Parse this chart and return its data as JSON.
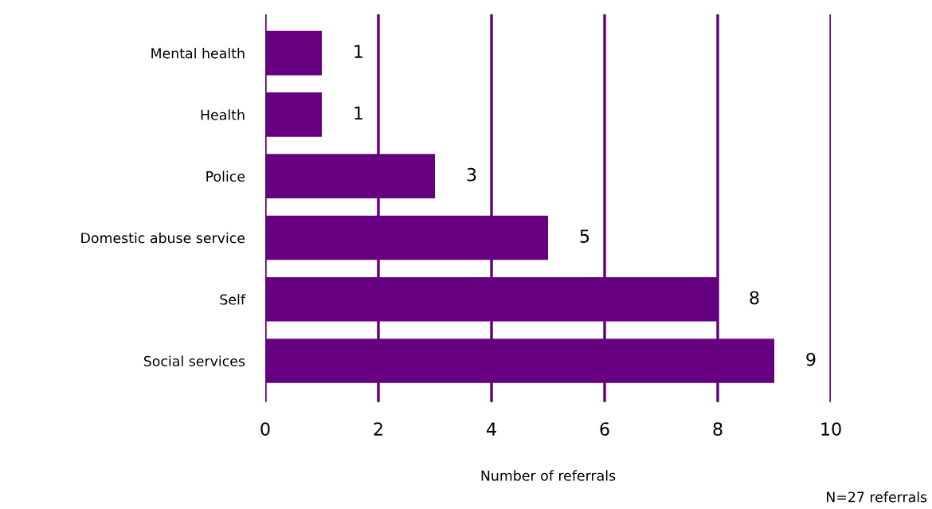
{
  "chart_data": {
    "type": "bar",
    "orientation": "horizontal",
    "categories": [
      "Mental health",
      "Health",
      "Police",
      "Domestic abuse service",
      "Self",
      "Social services"
    ],
    "values": [
      1,
      1,
      3,
      5,
      8,
      9
    ],
    "color": "#660080",
    "xlabel": "Number of referrals",
    "xlim": [
      0,
      10
    ],
    "xticks": [
      0,
      2,
      4,
      6,
      8,
      10
    ],
    "grid": "x",
    "data_labels": true,
    "annotations": [
      "N=27 referrals"
    ]
  }
}
